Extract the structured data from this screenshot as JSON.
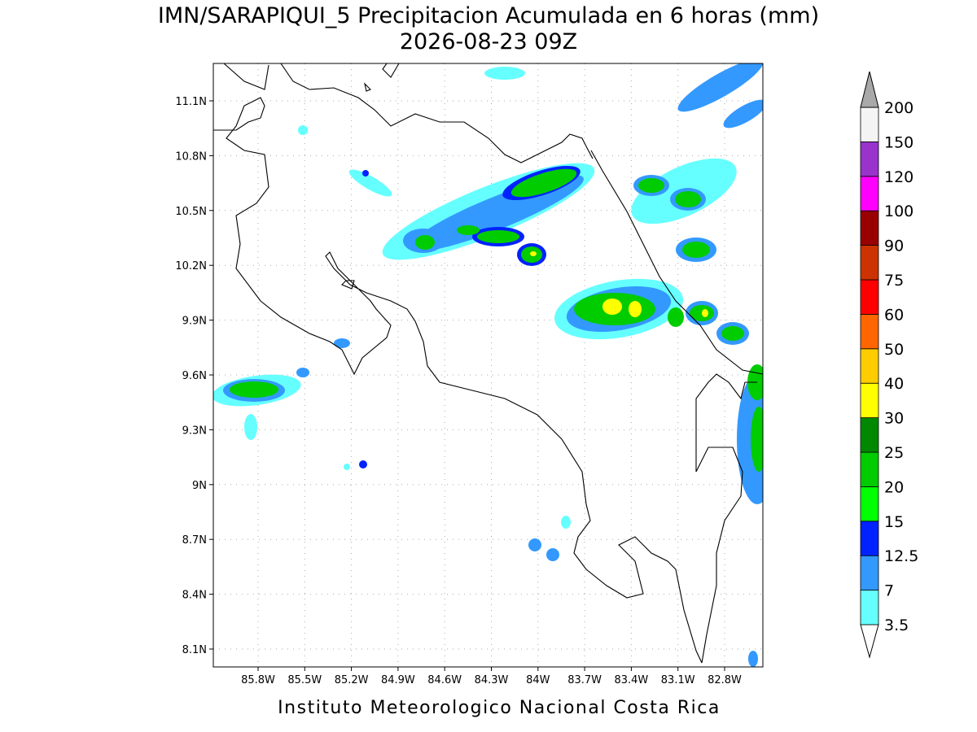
{
  "title": "IMN/SARAPIQUI_5 Precipitacion Acumulada en 6 horas (mm)",
  "subtitle": "2026-08-23 09Z",
  "footer": "Instituto Meteorologico Nacional Costa Rica",
  "lon_labels": [
    "85.8W",
    "85.5W",
    "85.2W",
    "84.9W",
    "84.6W",
    "84.3W",
    "84W",
    "83.7W",
    "83.4W",
    "83.1W",
    "82.8W"
  ],
  "lat_labels": [
    "8.1N",
    "8.4N",
    "8.7N",
    "9N",
    "9.3N",
    "9.6N",
    "9.9N",
    "10.2N",
    "10.5N",
    "10.8N",
    "11.1N"
  ],
  "colorbar": {
    "labels": [
      "3.5",
      "7",
      "12.5",
      "15",
      "20",
      "25",
      "30",
      "40",
      "50",
      "60",
      "75",
      "90",
      "100",
      "120",
      "150",
      "200"
    ],
    "colors": [
      "#66ffff",
      "#3399ff",
      "#0022ff",
      "#00ff00",
      "#00cc00",
      "#008800",
      "#ffff00",
      "#ffcc00",
      "#ff6600",
      "#ff0000",
      "#cc3300",
      "#990000",
      "#ff00ff",
      "#9933cc",
      "#f4f4f4"
    ],
    "below_color": "#ffffff",
    "above_color": "#a8a8a8"
  }
}
